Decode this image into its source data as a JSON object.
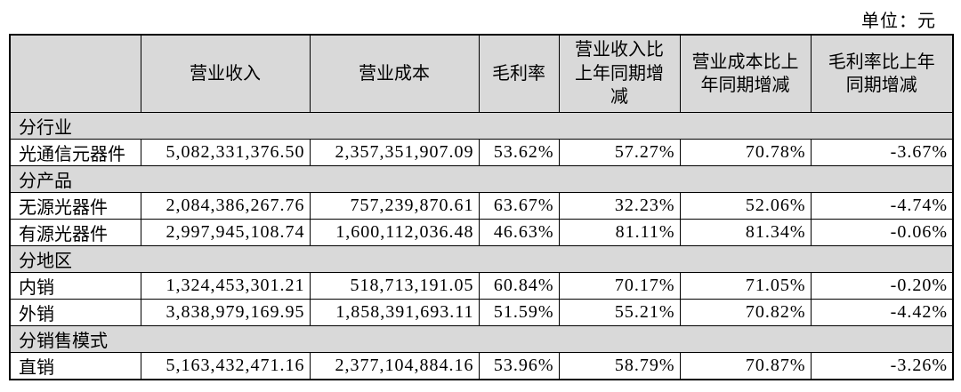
{
  "unit_label": "单位：元",
  "colors": {
    "header_bg": "#d9d9d9",
    "border": "#000000"
  },
  "table": {
    "columns": [
      "",
      "营业收入",
      "营业成本",
      "毛利率",
      "营业收入比上年同期增减",
      "营业成本比上年同期增减",
      "毛利率比上年同期增减"
    ],
    "sections": [
      {
        "title": "分行业",
        "rows": [
          {
            "label": "光通信元器件",
            "values": [
              "5,082,331,376.50",
              "2,357,351,907.09",
              "53.62%",
              "57.27%",
              "70.78%",
              "-3.67%"
            ]
          }
        ]
      },
      {
        "title": "分产品",
        "rows": [
          {
            "label": "无源光器件",
            "values": [
              "2,084,386,267.76",
              "757,239,870.61",
              "63.67%",
              "32.23%",
              "52.06%",
              "-4.74%"
            ]
          },
          {
            "label": "有源光器件",
            "values": [
              "2,997,945,108.74",
              "1,600,112,036.48",
              "46.63%",
              "81.11%",
              "81.34%",
              "-0.06%"
            ]
          }
        ]
      },
      {
        "title": "分地区",
        "rows": [
          {
            "label": "内销",
            "values": [
              "1,324,453,301.21",
              "518,713,191.05",
              "60.84%",
              "70.17%",
              "71.05%",
              "-0.20%"
            ]
          },
          {
            "label": "外销",
            "values": [
              "3,838,979,169.95",
              "1,858,391,693.11",
              "51.59%",
              "55.21%",
              "70.82%",
              "-4.42%"
            ]
          }
        ]
      },
      {
        "title": "分销售模式",
        "rows": [
          {
            "label": "直销",
            "values": [
              "5,163,432,471.16",
              "2,377,104,884.16",
              "53.96%",
              "58.79%",
              "70.87%",
              "-3.26%"
            ]
          }
        ]
      }
    ]
  }
}
